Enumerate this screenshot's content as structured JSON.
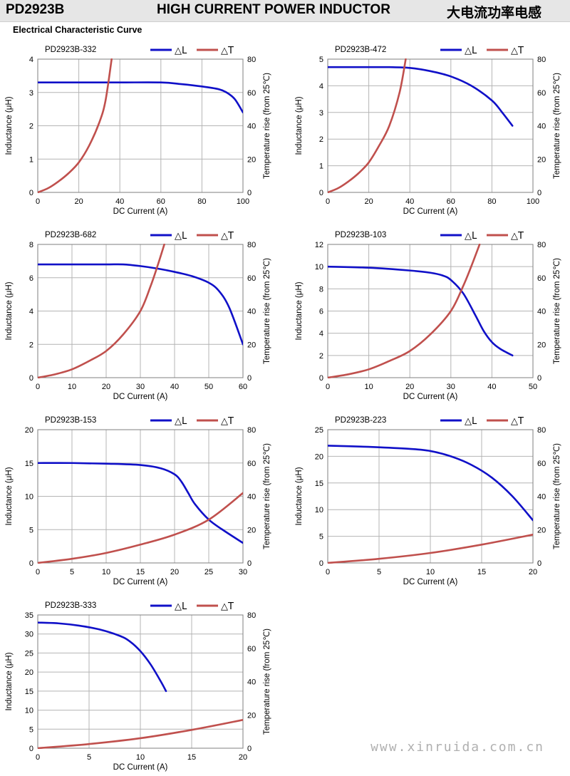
{
  "header": {
    "part_number": "PD2923B",
    "product_title": "HIGH CURRENT POWER INDUCTOR",
    "chinese_title": "大电流功率电感"
  },
  "section_title": "Electrical Characteristic Curve",
  "watermark": "www.xinruida.com.cn",
  "legend": {
    "inductance": "△L",
    "temperature": "△T"
  },
  "colors": {
    "inductance": "#1010c8",
    "temperature": "#c0504d",
    "grid": "#b4b4b4",
    "plot_border": "#7f7f7f"
  },
  "axis_labels": {
    "x": "DC Current (A)",
    "y_left": "Inductance (μH)",
    "y_right": "Temperature rise (from 25℃)"
  },
  "chart_data": [
    {
      "type": "line",
      "title": "PD2923B-332",
      "xlim": [
        0,
        100
      ],
      "xticks": [
        0,
        20,
        40,
        60,
        80,
        100
      ],
      "ylim": [
        0,
        4
      ],
      "yticks": [
        0,
        1,
        2,
        3,
        4
      ],
      "y2lim": [
        0,
        80
      ],
      "y2ticks": [
        0,
        20,
        40,
        60,
        80
      ],
      "grid": true,
      "legend": "top-right",
      "series": [
        {
          "name": "△L",
          "axis": "left",
          "x": [
            0,
            20,
            40,
            60,
            70,
            80,
            88,
            92,
            96,
            100
          ],
          "y": [
            3.3,
            3.3,
            3.3,
            3.3,
            3.25,
            3.18,
            3.1,
            3.0,
            2.8,
            2.4
          ]
        },
        {
          "name": "△T",
          "axis": "right",
          "x": [
            0,
            5,
            10,
            15,
            20,
            25,
            30,
            33,
            36
          ],
          "y": [
            0,
            2.5,
            6.5,
            11.5,
            18,
            28,
            42,
            55,
            80
          ]
        }
      ]
    },
    {
      "type": "line",
      "title": "PD2923B-472",
      "xlim": [
        0,
        100
      ],
      "xticks": [
        0,
        20,
        40,
        60,
        80,
        100
      ],
      "ylim": [
        0,
        5
      ],
      "yticks": [
        0,
        1,
        2,
        3,
        4,
        5
      ],
      "y2lim": [
        0,
        80
      ],
      "y2ticks": [
        0,
        20,
        40,
        60,
        80
      ],
      "grid": true,
      "legend": "top-right",
      "series": [
        {
          "name": "△L",
          "axis": "left",
          "x": [
            0,
            20,
            30,
            40,
            50,
            60,
            70,
            80,
            85,
            90
          ],
          "y": [
            4.7,
            4.7,
            4.7,
            4.67,
            4.55,
            4.35,
            4.0,
            3.45,
            3.0,
            2.5
          ]
        },
        {
          "name": "△T",
          "axis": "right",
          "x": [
            0,
            5,
            10,
            15,
            20,
            25,
            30,
            35,
            38
          ],
          "y": [
            0,
            2.5,
            6.5,
            11.5,
            18,
            28,
            40,
            60,
            80
          ]
        }
      ]
    },
    {
      "type": "line",
      "title": "PD2923B-682",
      "xlim": [
        0,
        60
      ],
      "xticks": [
        0,
        10,
        20,
        30,
        40,
        50,
        60
      ],
      "ylim": [
        0,
        8
      ],
      "yticks": [
        0,
        2,
        4,
        6,
        8
      ],
      "y2lim": [
        0,
        80
      ],
      "y2ticks": [
        0,
        20,
        40,
        60,
        80
      ],
      "grid": true,
      "legend": "top-right",
      "series": [
        {
          "name": "△L",
          "axis": "left",
          "x": [
            0,
            10,
            20,
            25,
            30,
            35,
            40,
            45,
            50,
            53,
            56,
            60
          ],
          "y": [
            6.8,
            6.8,
            6.8,
            6.8,
            6.7,
            6.55,
            6.35,
            6.1,
            5.7,
            5.2,
            4.2,
            2.0
          ]
        },
        {
          "name": "△T",
          "axis": "right",
          "x": [
            0,
            5,
            10,
            15,
            20,
            25,
            30,
            33,
            35,
            37
          ],
          "y": [
            0,
            2,
            5,
            10,
            16,
            26,
            40,
            55,
            67,
            80
          ]
        }
      ]
    },
    {
      "type": "line",
      "title": "PD2923B-103",
      "xlim": [
        0,
        50
      ],
      "xticks": [
        0,
        10,
        20,
        30,
        40,
        50
      ],
      "ylim": [
        0,
        12
      ],
      "yticks": [
        0,
        2,
        4,
        6,
        8,
        10,
        12
      ],
      "y2lim": [
        0,
        80
      ],
      "y2ticks": [
        0,
        20,
        40,
        60,
        80
      ],
      "grid": true,
      "legend": "top-right",
      "series": [
        {
          "name": "△L",
          "axis": "left",
          "x": [
            0,
            10,
            20,
            25,
            28,
            30,
            33,
            36,
            38,
            40,
            42,
            45
          ],
          "y": [
            10.0,
            9.9,
            9.65,
            9.45,
            9.2,
            8.8,
            7.6,
            5.6,
            4.2,
            3.2,
            2.6,
            2.0
          ]
        },
        {
          "name": "△T",
          "axis": "right",
          "x": [
            0,
            5,
            10,
            15,
            20,
            25,
            30,
            33,
            35,
            37
          ],
          "y": [
            0,
            2,
            5,
            10,
            16,
            26,
            40,
            55,
            67,
            80
          ]
        }
      ]
    },
    {
      "type": "line",
      "title": "PD2923B-153",
      "xlim": [
        0,
        30
      ],
      "xticks": [
        0,
        5,
        10,
        15,
        20,
        25,
        30
      ],
      "ylim": [
        0,
        20
      ],
      "yticks": [
        0,
        5,
        10,
        15,
        20
      ],
      "y2lim": [
        0,
        80
      ],
      "y2ticks": [
        0,
        20,
        40,
        60,
        80
      ],
      "grid": true,
      "legend": "top-right",
      "series": [
        {
          "name": "△L",
          "axis": "left",
          "x": [
            0,
            5,
            10,
            15,
            18,
            20,
            21,
            22,
            23,
            25,
            27,
            30
          ],
          "y": [
            15.0,
            15.0,
            14.9,
            14.7,
            14.2,
            13.3,
            12.2,
            10.5,
            8.8,
            6.5,
            5.0,
            3.0
          ]
        },
        {
          "name": "△T",
          "axis": "right",
          "x": [
            0,
            5,
            10,
            15,
            20,
            25,
            30
          ],
          "y": [
            0,
            2.5,
            6,
            11,
            17,
            26,
            42
          ]
        }
      ]
    },
    {
      "type": "line",
      "title": "PD2923B-223",
      "xlim": [
        0,
        20
      ],
      "xticks": [
        0,
        5,
        10,
        15,
        20
      ],
      "ylim": [
        0,
        25
      ],
      "yticks": [
        0,
        5,
        10,
        15,
        20,
        25
      ],
      "y2lim": [
        0,
        80
      ],
      "y2ticks": [
        0,
        20,
        40,
        60,
        80
      ],
      "grid": true,
      "legend": "top-right",
      "series": [
        {
          "name": "△L",
          "axis": "left",
          "x": [
            0,
            2,
            5,
            8,
            10,
            12,
            14,
            16,
            18,
            20
          ],
          "y": [
            22.0,
            21.9,
            21.7,
            21.4,
            21.0,
            20.0,
            18.4,
            16.0,
            12.5,
            8.0
          ]
        },
        {
          "name": "△T",
          "axis": "right",
          "x": [
            0,
            5,
            10,
            15,
            20
          ],
          "y": [
            0,
            2.5,
            6,
            11,
            17
          ]
        }
      ]
    },
    {
      "type": "line",
      "title": "PD2923B-333",
      "xlim": [
        0,
        20
      ],
      "xticks": [
        0,
        5,
        10,
        15,
        20
      ],
      "ylim": [
        0,
        35
      ],
      "yticks": [
        0,
        5,
        10,
        15,
        20,
        25,
        30,
        35
      ],
      "y2lim": [
        0,
        80
      ],
      "y2ticks": [
        0,
        20,
        40,
        60,
        80
      ],
      "grid": true,
      "legend": "top-right",
      "series": [
        {
          "name": "△L",
          "axis": "left",
          "x": [
            0,
            2,
            4,
            6,
            8,
            9,
            10,
            11,
            12,
            12.5
          ],
          "y": [
            33.0,
            32.8,
            32.2,
            31.2,
            29.5,
            28.0,
            25.5,
            22.0,
            17.5,
            15.0
          ]
        },
        {
          "name": "△T",
          "axis": "right",
          "x": [
            0,
            5,
            10,
            15,
            20
          ],
          "y": [
            0,
            2.5,
            6,
            11,
            17
          ]
        }
      ]
    }
  ]
}
